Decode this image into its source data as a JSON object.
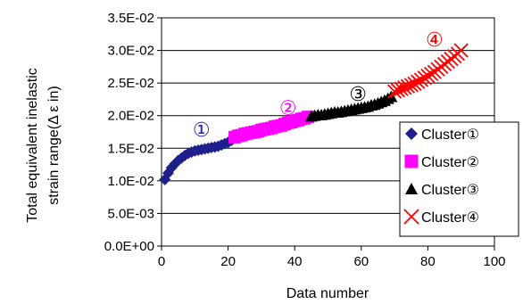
{
  "chart_data": {
    "type": "scatter",
    "title": "",
    "xlabel": "Data number",
    "ylabel_lines": [
      "Total equivalent inelastic",
      "strain range(Δ ε in)"
    ],
    "xlim": [
      0,
      100
    ],
    "ylim": [
      0,
      0.035
    ],
    "x_ticks": [
      {
        "value": 0,
        "label": "0"
      },
      {
        "value": 20,
        "label": "20"
      },
      {
        "value": 40,
        "label": "40"
      },
      {
        "value": 60,
        "label": "60"
      },
      {
        "value": 80,
        "label": "80"
      },
      {
        "value": 100,
        "label": "100"
      }
    ],
    "y_ticks": [
      {
        "value": 0,
        "label": "0.0E+00"
      },
      {
        "value": 0.005,
        "label": "5.0E-03"
      },
      {
        "value": 0.01,
        "label": "1.0E-02"
      },
      {
        "value": 0.015,
        "label": "1.5E-02"
      },
      {
        "value": 0.02,
        "label": "2.0E-02"
      },
      {
        "value": 0.025,
        "label": "2.5E-02"
      },
      {
        "value": 0.03,
        "label": "3.0E-02"
      },
      {
        "value": 0.035,
        "label": "3.5E-02"
      }
    ],
    "grid": {
      "horizontal": true,
      "vertical": false
    },
    "legend_position": "right",
    "series": [
      {
        "name": "Cluster①",
        "marker": "diamond",
        "color": "#1f1f8c",
        "points": [
          [
            1,
            0.0102
          ],
          [
            2,
            0.0112
          ],
          [
            3,
            0.012
          ],
          [
            4,
            0.0126
          ],
          [
            5,
            0.0131
          ],
          [
            6,
            0.0135
          ],
          [
            7,
            0.0139
          ],
          [
            8,
            0.0142
          ],
          [
            9,
            0.0144
          ],
          [
            10,
            0.0146
          ],
          [
            11,
            0.0147
          ],
          [
            12,
            0.0148
          ],
          [
            13,
            0.0149
          ],
          [
            14,
            0.015
          ],
          [
            15,
            0.0151
          ],
          [
            16,
            0.0152
          ],
          [
            17,
            0.0153
          ],
          [
            18,
            0.0155
          ],
          [
            19,
            0.0157
          ],
          [
            20,
            0.0159
          ],
          [
            21,
            0.0162
          ]
        ]
      },
      {
        "name": "Cluster②",
        "marker": "square",
        "color": "#ff00ff",
        "points": [
          [
            22,
            0.0167
          ],
          [
            23,
            0.0169
          ],
          [
            24,
            0.017
          ],
          [
            25,
            0.0172
          ],
          [
            26,
            0.0173
          ],
          [
            27,
            0.0174
          ],
          [
            28,
            0.0175
          ],
          [
            29,
            0.0176
          ],
          [
            30,
            0.0178
          ],
          [
            31,
            0.0179
          ],
          [
            32,
            0.018
          ],
          [
            33,
            0.0181
          ],
          [
            34,
            0.0183
          ],
          [
            35,
            0.0184
          ],
          [
            36,
            0.0185
          ],
          [
            37,
            0.0187
          ],
          [
            38,
            0.0189
          ],
          [
            39,
            0.019
          ],
          [
            40,
            0.0192
          ],
          [
            41,
            0.0193
          ],
          [
            42,
            0.0195
          ],
          [
            43,
            0.0196
          ],
          [
            44,
            0.0198
          ]
        ]
      },
      {
        "name": "Cluster③",
        "marker": "triangle",
        "color": "#000000",
        "points": [
          [
            45,
            0.0199
          ],
          [
            46,
            0.02
          ],
          [
            47,
            0.0201
          ],
          [
            48,
            0.0201
          ],
          [
            49,
            0.0202
          ],
          [
            50,
            0.0203
          ],
          [
            51,
            0.0204
          ],
          [
            52,
            0.0205
          ],
          [
            53,
            0.0205
          ],
          [
            54,
            0.0206
          ],
          [
            55,
            0.0207
          ],
          [
            56,
            0.0208
          ],
          [
            57,
            0.0209
          ],
          [
            58,
            0.021
          ],
          [
            59,
            0.0211
          ],
          [
            60,
            0.0212
          ],
          [
            61,
            0.0213
          ],
          [
            62,
            0.0214
          ],
          [
            63,
            0.0216
          ],
          [
            64,
            0.0217
          ],
          [
            65,
            0.0219
          ],
          [
            66,
            0.0221
          ],
          [
            67,
            0.0223
          ],
          [
            68,
            0.0226
          ],
          [
            69,
            0.0229
          ]
        ]
      },
      {
        "name": "Cluster④",
        "marker": "x",
        "color": "#ff0000",
        "points": [
          [
            70,
            0.0237
          ],
          [
            71,
            0.0239
          ],
          [
            72,
            0.0241
          ],
          [
            73,
            0.0243
          ],
          [
            74,
            0.0245
          ],
          [
            75,
            0.0247
          ],
          [
            76,
            0.0249
          ],
          [
            77,
            0.0252
          ],
          [
            78,
            0.0255
          ],
          [
            79,
            0.0258
          ],
          [
            80,
            0.0261
          ],
          [
            81,
            0.0264
          ],
          [
            82,
            0.0267
          ],
          [
            83,
            0.0271
          ],
          [
            84,
            0.0275
          ],
          [
            85,
            0.0279
          ],
          [
            86,
            0.0283
          ],
          [
            87,
            0.0287
          ],
          [
            88,
            0.0291
          ],
          [
            89,
            0.0295
          ],
          [
            90,
            0.03
          ]
        ]
      }
    ],
    "annotations": [
      {
        "text": "①",
        "x": 12,
        "y": 0.0168,
        "color": "#2222cc"
      },
      {
        "text": "②",
        "x": 38,
        "y": 0.0202,
        "color": "#ff00ff"
      },
      {
        "text": "③",
        "x": 59,
        "y": 0.0223,
        "color": "#000000"
      },
      {
        "text": "④",
        "x": 82,
        "y": 0.0306,
        "color": "#ff0000"
      }
    ]
  }
}
